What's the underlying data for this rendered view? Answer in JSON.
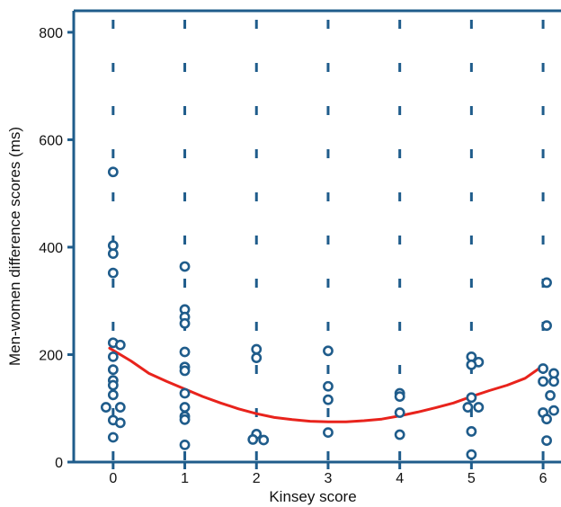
{
  "chart_data": {
    "type": "scatter",
    "title": "",
    "xlabel": "Kinsey score",
    "ylabel": "Men-women difference scores (ms)",
    "xlim": [
      -0.55,
      6.25
    ],
    "ylim": [
      0,
      840
    ],
    "x_ticks": [
      0,
      1,
      2,
      3,
      4,
      5,
      6
    ],
    "y_ticks": [
      0,
      200,
      400,
      600,
      800
    ],
    "grid": false,
    "legend": "none",
    "colors": {
      "axis": "#1f5c8b",
      "points": "#1f5c8b",
      "fit_line": "#e8231c"
    },
    "series": [
      {
        "type": "scatter",
        "points": [
          {
            "x": 0.0,
            "y": 540
          },
          {
            "x": 0.0,
            "y": 403
          },
          {
            "x": 0.0,
            "y": 388
          },
          {
            "x": 0.0,
            "y": 352
          },
          {
            "x": 0.0,
            "y": 222
          },
          {
            "x": 0.1,
            "y": 218
          },
          {
            "x": 0.0,
            "y": 196
          },
          {
            "x": 0.0,
            "y": 172
          },
          {
            "x": 0.0,
            "y": 152
          },
          {
            "x": 0.0,
            "y": 143
          },
          {
            "x": 0.0,
            "y": 125
          },
          {
            "x": -0.1,
            "y": 102
          },
          {
            "x": 0.1,
            "y": 102
          },
          {
            "x": 0.0,
            "y": 78
          },
          {
            "x": 0.1,
            "y": 73
          },
          {
            "x": 0.0,
            "y": 46
          },
          {
            "x": 1.0,
            "y": 364
          },
          {
            "x": 1.0,
            "y": 284
          },
          {
            "x": 1.0,
            "y": 270
          },
          {
            "x": 1.0,
            "y": 258
          },
          {
            "x": 1.0,
            "y": 205
          },
          {
            "x": 1.0,
            "y": 177
          },
          {
            "x": 1.0,
            "y": 170
          },
          {
            "x": 1.0,
            "y": 128
          },
          {
            "x": 1.0,
            "y": 102
          },
          {
            "x": 1.0,
            "y": 85
          },
          {
            "x": 1.0,
            "y": 79
          },
          {
            "x": 1.0,
            "y": 32
          },
          {
            "x": 2.0,
            "y": 210
          },
          {
            "x": 2.0,
            "y": 194
          },
          {
            "x": 2.0,
            "y": 52
          },
          {
            "x": 1.95,
            "y": 42
          },
          {
            "x": 2.1,
            "y": 41
          },
          {
            "x": 3.0,
            "y": 207
          },
          {
            "x": 3.0,
            "y": 141
          },
          {
            "x": 3.0,
            "y": 116
          },
          {
            "x": 3.0,
            "y": 55
          },
          {
            "x": 4.0,
            "y": 128
          },
          {
            "x": 4.0,
            "y": 122
          },
          {
            "x": 4.0,
            "y": 92
          },
          {
            "x": 4.0,
            "y": 51
          },
          {
            "x": 5.0,
            "y": 196
          },
          {
            "x": 5.1,
            "y": 186
          },
          {
            "x": 5.0,
            "y": 181
          },
          {
            "x": 5.0,
            "y": 120
          },
          {
            "x": 4.95,
            "y": 102
          },
          {
            "x": 5.1,
            "y": 102
          },
          {
            "x": 5.0,
            "y": 57
          },
          {
            "x": 5.0,
            "y": 14
          },
          {
            "x": 6.05,
            "y": 334
          },
          {
            "x": 6.05,
            "y": 254
          },
          {
            "x": 6.0,
            "y": 174
          },
          {
            "x": 6.15,
            "y": 165
          },
          {
            "x": 6.0,
            "y": 150
          },
          {
            "x": 6.15,
            "y": 150
          },
          {
            "x": 6.1,
            "y": 124
          },
          {
            "x": 6.15,
            "y": 96
          },
          {
            "x": 6.0,
            "y": 92
          },
          {
            "x": 6.05,
            "y": 80
          },
          {
            "x": 6.05,
            "y": 40
          }
        ]
      },
      {
        "type": "line",
        "points": [
          {
            "x": -0.05,
            "y": 212
          },
          {
            "x": 0.25,
            "y": 188
          },
          {
            "x": 0.5,
            "y": 165
          },
          {
            "x": 0.75,
            "y": 150
          },
          {
            "x": 1.0,
            "y": 136
          },
          {
            "x": 1.25,
            "y": 122
          },
          {
            "x": 1.5,
            "y": 110
          },
          {
            "x": 1.75,
            "y": 99
          },
          {
            "x": 2.0,
            "y": 90
          },
          {
            "x": 2.25,
            "y": 83
          },
          {
            "x": 2.5,
            "y": 79
          },
          {
            "x": 2.75,
            "y": 76
          },
          {
            "x": 3.0,
            "y": 75
          },
          {
            "x": 3.25,
            "y": 75
          },
          {
            "x": 3.5,
            "y": 77
          },
          {
            "x": 3.75,
            "y": 80
          },
          {
            "x": 4.0,
            "y": 86
          },
          {
            "x": 4.25,
            "y": 93
          },
          {
            "x": 4.5,
            "y": 101
          },
          {
            "x": 4.75,
            "y": 110
          },
          {
            "x": 5.0,
            "y": 122
          },
          {
            "x": 5.25,
            "y": 133
          },
          {
            "x": 5.5,
            "y": 143
          },
          {
            "x": 5.75,
            "y": 156
          },
          {
            "x": 5.9,
            "y": 170
          },
          {
            "x": 6.0,
            "y": 180
          }
        ]
      }
    ]
  }
}
